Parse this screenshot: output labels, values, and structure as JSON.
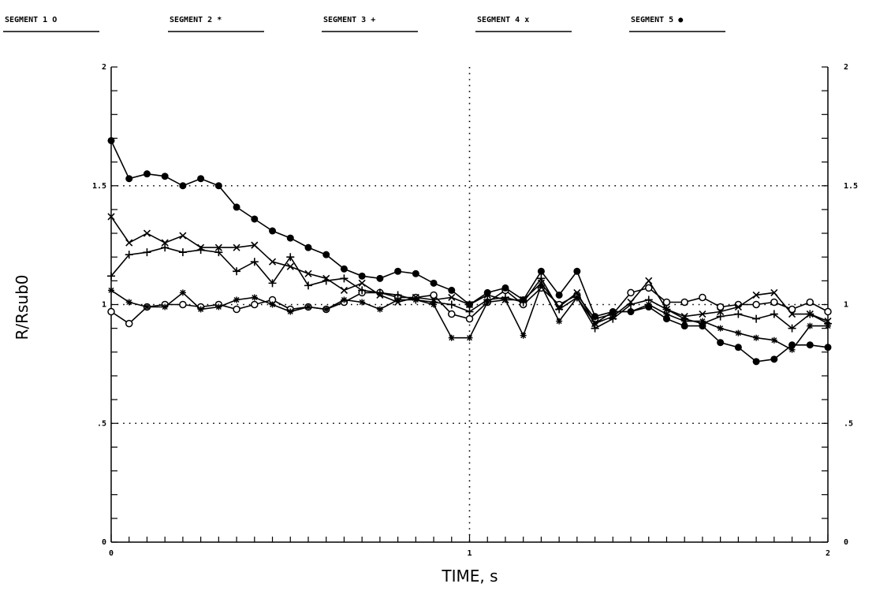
{
  "chart_data": {
    "type": "line",
    "xlabel": "TIME, s",
    "ylabel": "R/Rsub0",
    "xlim": [
      0,
      2
    ],
    "ylim": [
      0,
      2
    ],
    "x_ticks": [
      {
        "value": 0,
        "label": "0"
      },
      {
        "value": 1,
        "label": "1"
      },
      {
        "value": 2,
        "label": "2"
      }
    ],
    "y_ticks_left": [
      {
        "value": 0,
        "label": "0"
      },
      {
        "value": 0.5,
        "label": ".5"
      },
      {
        "value": 1,
        "label": "1"
      },
      {
        "value": 1.5,
        "label": "1.5"
      },
      {
        "value": 2,
        "label": "2"
      }
    ],
    "y_ticks_right": [
      {
        "value": 0,
        "label": "0"
      },
      {
        "value": 0.5,
        "label": ".5"
      },
      {
        "value": 1,
        "label": "1"
      },
      {
        "value": 1.5,
        "label": "1.5"
      },
      {
        "value": 2,
        "label": "2"
      }
    ],
    "grid": "dotted lines at y = 0.5, 1, 1.5 and x = 1",
    "legend_position": "top",
    "x": [
      0,
      0.05,
      0.1,
      0.15,
      0.2,
      0.25,
      0.3,
      0.35,
      0.4,
      0.45,
      0.5,
      0.55,
      0.6,
      0.65,
      0.7,
      0.75,
      0.8,
      0.85,
      0.9,
      0.95,
      1.0,
      1.05,
      1.1,
      1.15,
      1.2,
      1.25,
      1.3,
      1.35,
      1.4,
      1.45,
      1.5,
      1.55,
      1.6,
      1.65,
      1.7,
      1.75,
      1.8,
      1.85,
      1.9,
      1.95,
      2.0
    ],
    "series": [
      {
        "name": "SEGMENT 1",
        "legend_label": "SEGMENT 1  O",
        "marker": "o",
        "values": [
          0.97,
          0.92,
          0.99,
          1.0,
          1.0,
          0.99,
          1.0,
          0.98,
          1.0,
          1.02,
          0.98,
          0.99,
          0.98,
          1.01,
          1.05,
          1.05,
          1.03,
          1.03,
          1.04,
          0.96,
          0.94,
          1.01,
          1.06,
          1.0,
          1.07,
          1.0,
          1.04,
          0.94,
          0.96,
          1.05,
          1.07,
          1.01,
          1.01,
          1.03,
          0.99,
          1.0,
          1.0,
          1.01,
          0.98,
          1.01,
          0.97
        ]
      },
      {
        "name": "SEGMENT 2",
        "legend_label": "SEGMENT 2  *",
        "marker": "*",
        "values": [
          1.06,
          1.01,
          0.99,
          0.99,
          1.05,
          0.98,
          0.99,
          1.02,
          1.03,
          1.0,
          0.97,
          0.99,
          0.98,
          1.02,
          1.01,
          0.98,
          1.02,
          1.02,
          1.0,
          0.86,
          0.86,
          1.01,
          1.02,
          0.87,
          1.08,
          0.93,
          1.03,
          0.92,
          0.97,
          0.97,
          1.0,
          0.96,
          0.93,
          0.93,
          0.9,
          0.88,
          0.86,
          0.85,
          0.81,
          0.91,
          0.91
        ]
      },
      {
        "name": "SEGMENT 3",
        "legend_label": "SEGMENT 3  +",
        "marker": "+",
        "values": [
          1.12,
          1.21,
          1.22,
          1.24,
          1.22,
          1.23,
          1.22,
          1.14,
          1.18,
          1.09,
          1.2,
          1.08,
          1.1,
          1.11,
          1.06,
          1.05,
          1.04,
          1.02,
          1.01,
          1.0,
          0.97,
          1.02,
          1.03,
          1.01,
          1.11,
          0.98,
          1.03,
          0.9,
          0.94,
          1.0,
          1.02,
          0.98,
          0.94,
          0.92,
          0.95,
          0.96,
          0.94,
          0.96,
          0.9,
          0.96,
          0.92
        ]
      },
      {
        "name": "SEGMENT 4",
        "legend_label": "SEGMENT 4  x",
        "marker": "x",
        "values": [
          1.37,
          1.26,
          1.3,
          1.26,
          1.29,
          1.24,
          1.24,
          1.24,
          1.25,
          1.18,
          1.16,
          1.13,
          1.11,
          1.06,
          1.09,
          1.04,
          1.01,
          1.03,
          1.02,
          1.03,
          1.0,
          1.04,
          1.02,
          1.02,
          1.09,
          0.99,
          1.05,
          0.92,
          0.95,
          1.01,
          1.1,
          0.98,
          0.95,
          0.96,
          0.97,
          0.99,
          1.04,
          1.05,
          0.96,
          0.96,
          0.93
        ]
      },
      {
        "name": "SEGMENT 5",
        "legend_label": "SEGMENT 5  ●",
        "marker": "filled-circle",
        "values": [
          1.69,
          1.53,
          1.55,
          1.54,
          1.5,
          1.53,
          1.5,
          1.41,
          1.36,
          1.31,
          1.28,
          1.24,
          1.21,
          1.15,
          1.12,
          1.11,
          1.14,
          1.13,
          1.09,
          1.06,
          1.0,
          1.05,
          1.07,
          1.02,
          1.14,
          1.04,
          1.14,
          0.95,
          0.97,
          0.97,
          0.99,
          0.94,
          0.91,
          0.91,
          0.84,
          0.82,
          0.76,
          0.77,
          0.83,
          0.83,
          0.82
        ]
      }
    ]
  }
}
